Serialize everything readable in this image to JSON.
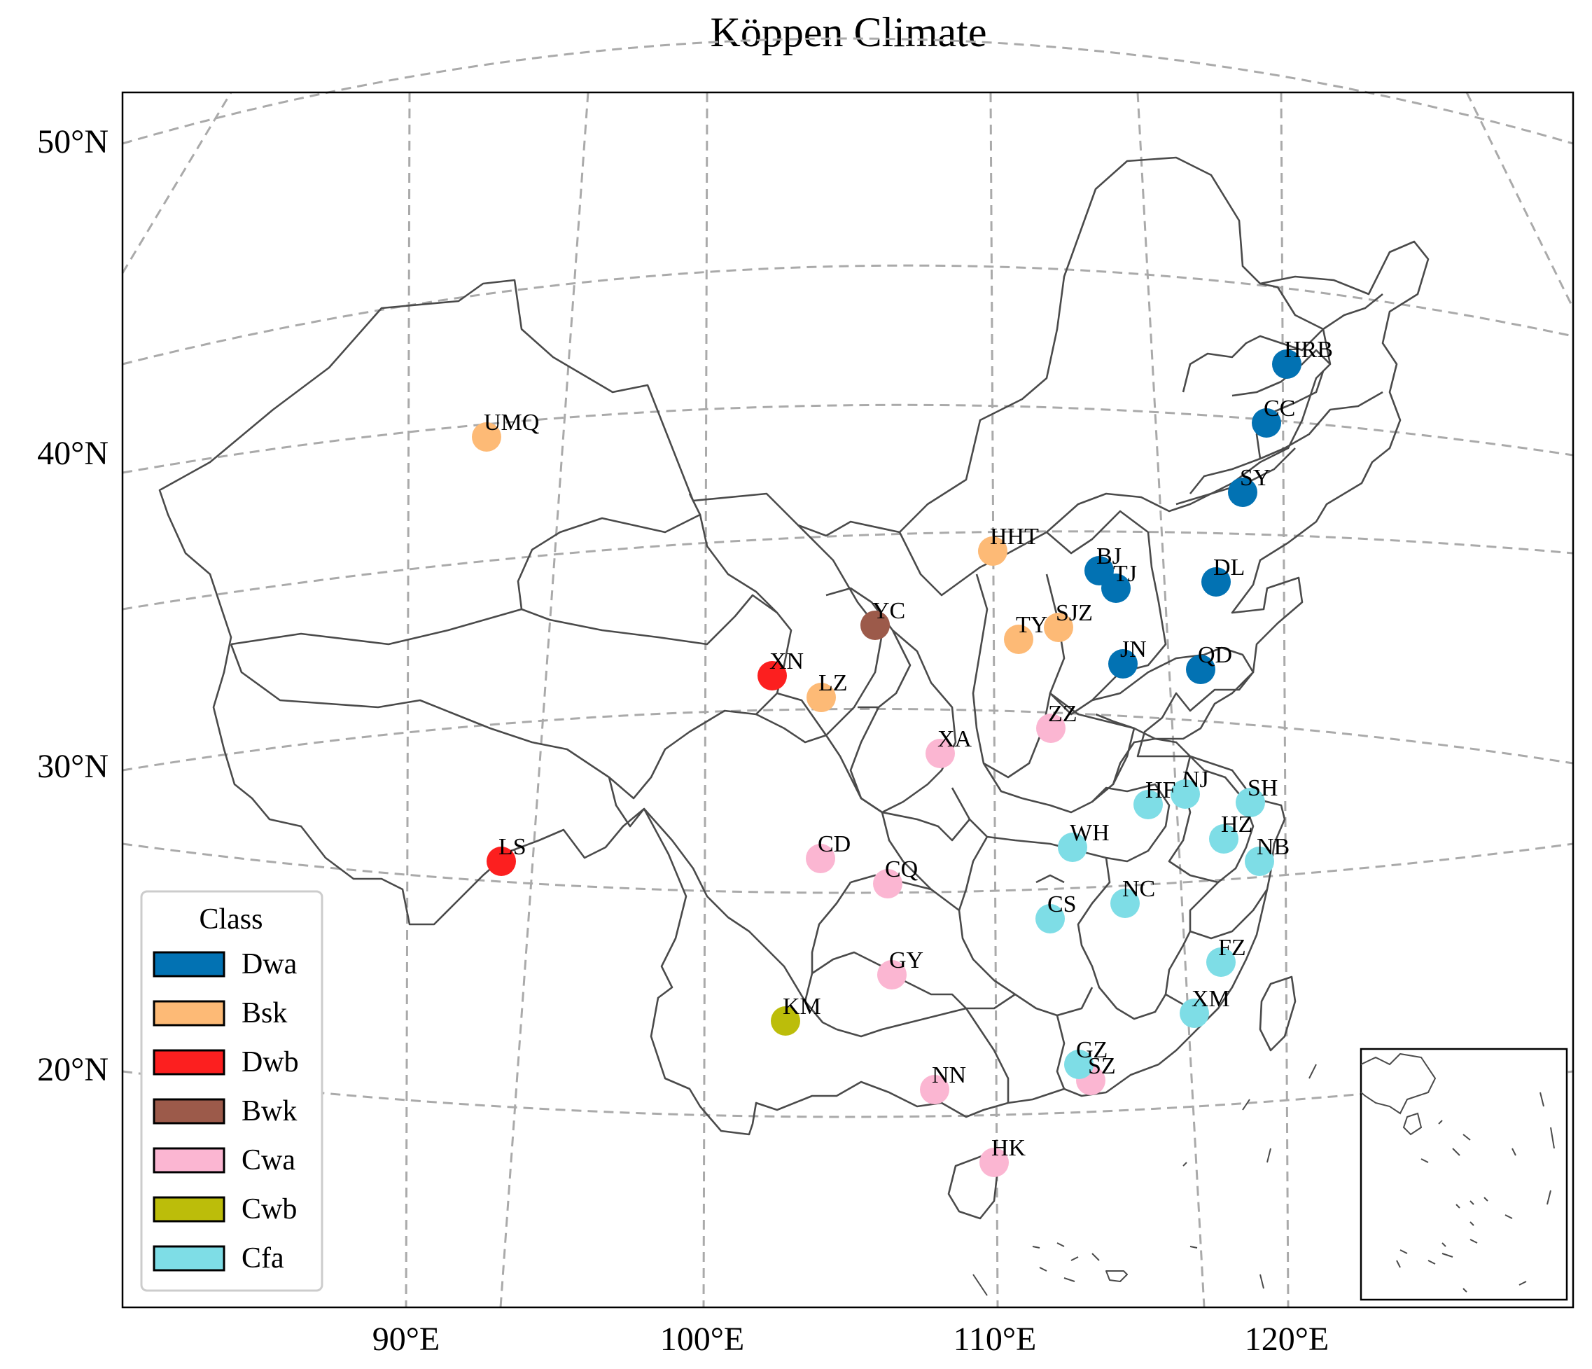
{
  "title": "Köppen Climate",
  "axes": {
    "lat_labels": [
      "50°N",
      "40°N",
      "30°N",
      "20°N"
    ],
    "lon_labels": [
      "90°E",
      "100°E",
      "110°E",
      "120°E"
    ]
  },
  "legend": {
    "title": "Class",
    "placement": "lower-left",
    "items": [
      {
        "label": "Dwa",
        "color": "#0272b3"
      },
      {
        "label": "Bsk",
        "color": "#fdba76"
      },
      {
        "label": "Dwb",
        "color": "#fc1f1f"
      },
      {
        "label": "Bwk",
        "color": "#9c5a4a"
      },
      {
        "label": "Cwa",
        "color": "#fbb6d2"
      },
      {
        "label": "Cwb",
        "color": "#bcbd0a"
      },
      {
        "label": "Cfa",
        "color": "#7edde6"
      }
    ]
  },
  "stations": [
    {
      "code": "HRB",
      "cls": "Dwa"
    },
    {
      "code": "CC",
      "cls": "Dwa"
    },
    {
      "code": "SY",
      "cls": "Dwa"
    },
    {
      "code": "DL",
      "cls": "Dwa"
    },
    {
      "code": "BJ",
      "cls": "Dwa"
    },
    {
      "code": "TJ",
      "cls": "Dwa"
    },
    {
      "code": "JN",
      "cls": "Dwa"
    },
    {
      "code": "QD",
      "cls": "Dwa"
    },
    {
      "code": "UMQ",
      "cls": "Bsk"
    },
    {
      "code": "HHT",
      "cls": "Bsk"
    },
    {
      "code": "TY",
      "cls": "Bsk"
    },
    {
      "code": "SJZ",
      "cls": "Bsk"
    },
    {
      "code": "LZ",
      "cls": "Bsk"
    },
    {
      "code": "XN",
      "cls": "Dwb"
    },
    {
      "code": "LS",
      "cls": "Dwb"
    },
    {
      "code": "YC",
      "cls": "Bwk"
    },
    {
      "code": "ZZ",
      "cls": "Cwa"
    },
    {
      "code": "XA",
      "cls": "Cwa"
    },
    {
      "code": "CD",
      "cls": "Cwa"
    },
    {
      "code": "CQ",
      "cls": "Cwa"
    },
    {
      "code": "GY",
      "cls": "Cwa"
    },
    {
      "code": "NN",
      "cls": "Cwa"
    },
    {
      "code": "SZ",
      "cls": "Cwa"
    },
    {
      "code": "HK",
      "cls": "Cwa"
    },
    {
      "code": "KM",
      "cls": "Cwb"
    },
    {
      "code": "HF",
      "cls": "Cfa"
    },
    {
      "code": "NJ",
      "cls": "Cfa"
    },
    {
      "code": "SH",
      "cls": "Cfa"
    },
    {
      "code": "HZ",
      "cls": "Cfa"
    },
    {
      "code": "NB",
      "cls": "Cfa"
    },
    {
      "code": "WH",
      "cls": "Cfa"
    },
    {
      "code": "NC",
      "cls": "Cfa"
    },
    {
      "code": "CS",
      "cls": "Cfa"
    },
    {
      "code": "FZ",
      "cls": "Cfa"
    },
    {
      "code": "XM",
      "cls": "Cfa"
    },
    {
      "code": "GZ",
      "cls": "Cfa"
    }
  ]
}
